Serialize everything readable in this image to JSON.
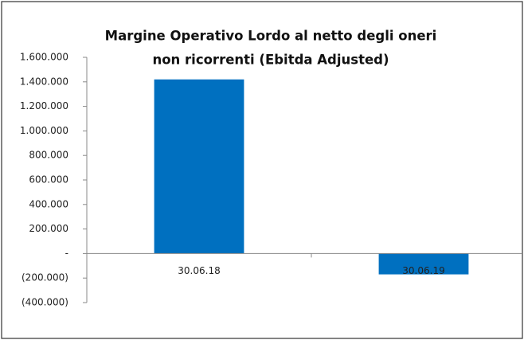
{
  "chart_data": {
    "type": "bar",
    "title": [
      "Margine Operativo Lordo al netto degli oneri",
      "non ricorrenti (Ebitda Adjusted)"
    ],
    "categories": [
      "30.06.18",
      "30.06.19"
    ],
    "values": [
      1420000,
      -170000
    ],
    "color": "#0070c0",
    "ylim": [
      -400000,
      1600000
    ],
    "yticks": [
      {
        "value": -400000,
        "label": "(400.000)"
      },
      {
        "value": -200000,
        "label": "(200.000)"
      },
      {
        "value": 0,
        "label": "-"
      },
      {
        "value": 200000,
        "label": "200.000"
      },
      {
        "value": 400000,
        "label": "400.000"
      },
      {
        "value": 600000,
        "label": "600.000"
      },
      {
        "value": 800000,
        "label": "800.000"
      },
      {
        "value": 1000000,
        "label": "1.000.000"
      },
      {
        "value": 1200000,
        "label": "1.200.000"
      },
      {
        "value": 1400000,
        "label": "1.400.000"
      },
      {
        "value": 1600000,
        "label": "1.600.000"
      }
    ]
  }
}
